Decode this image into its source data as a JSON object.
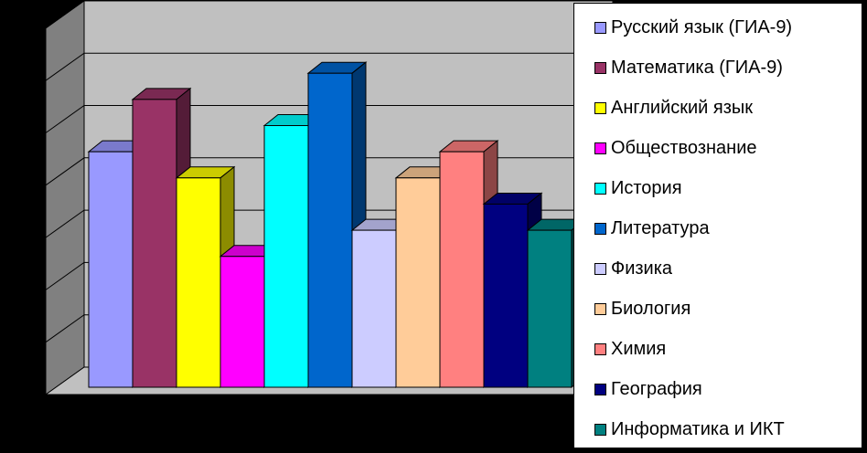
{
  "chart_data": {
    "type": "bar",
    "categories": [
      "Русский язык (ГИА-9)",
      "Математика (ГИА-9)",
      "Английский язык",
      "Обществознание",
      "История",
      "Литература",
      "Физика",
      "Биология",
      "Химия",
      "География",
      "Информатика и ИКТ"
    ],
    "values": [
      4.5,
      5.5,
      4.0,
      2.5,
      5.0,
      6.0,
      3.0,
      4.0,
      4.5,
      3.5,
      3.0
    ],
    "colors": [
      "#9999ff",
      "#993366",
      "#ffff00",
      "#ff00ff",
      "#00ffff",
      "#0066cc",
      "#ccccff",
      "#ffcc99",
      "#ff8080",
      "#000080",
      "#008080"
    ],
    "ylim": [
      0,
      7
    ],
    "grid": true,
    "legend_position": "right",
    "title": "",
    "xlabel": "",
    "ylabel": ""
  }
}
